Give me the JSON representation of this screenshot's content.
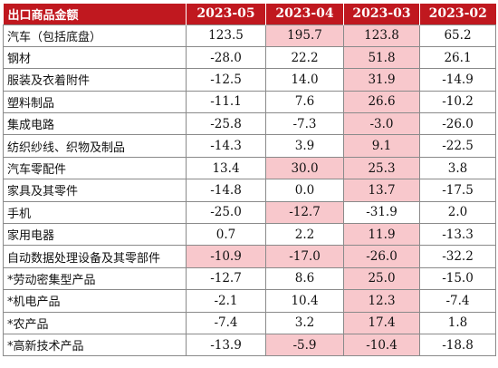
{
  "header": {
    "label": "出口商品金额",
    "periods": [
      "2023-05",
      "2023-04",
      "2023-03",
      "2023-02"
    ]
  },
  "highlight_color": "#f8c8cc",
  "header_color": "#c0181f",
  "rows": [
    {
      "name": "汽车（包括底盘）",
      "values": [
        "123.5",
        "195.7",
        "123.8",
        "65.2"
      ],
      "highlight": [
        false,
        true,
        true,
        false
      ]
    },
    {
      "name": "钢材",
      "values": [
        "-28.0",
        "22.2",
        "51.8",
        "26.1"
      ],
      "highlight": [
        false,
        false,
        true,
        false
      ]
    },
    {
      "name": "服装及衣着附件",
      "values": [
        "-12.5",
        "14.0",
        "31.9",
        "-14.9"
      ],
      "highlight": [
        false,
        false,
        true,
        false
      ]
    },
    {
      "name": "塑料制品",
      "values": [
        "-11.1",
        "7.6",
        "26.6",
        "-10.2"
      ],
      "highlight": [
        false,
        false,
        true,
        false
      ]
    },
    {
      "name": "集成电路",
      "values": [
        "-25.8",
        "-7.3",
        "-3.0",
        "-26.0"
      ],
      "highlight": [
        false,
        false,
        true,
        false
      ]
    },
    {
      "name": "纺织纱线、织物及制品",
      "values": [
        "-14.3",
        "3.9",
        "9.1",
        "-22.5"
      ],
      "highlight": [
        false,
        false,
        true,
        false
      ]
    },
    {
      "name": "汽车零配件",
      "values": [
        "13.4",
        "30.0",
        "25.3",
        "3.8"
      ],
      "highlight": [
        false,
        true,
        true,
        false
      ]
    },
    {
      "name": "家具及其零件",
      "values": [
        "-14.8",
        "0.0",
        "13.7",
        "-17.5"
      ],
      "highlight": [
        false,
        false,
        true,
        false
      ]
    },
    {
      "name": "手机",
      "values": [
        "-25.0",
        "-12.7",
        "-31.9",
        "2.0"
      ],
      "highlight": [
        false,
        true,
        false,
        false
      ]
    },
    {
      "name": "家用电器",
      "values": [
        "0.7",
        "2.2",
        "11.9",
        "-13.3"
      ],
      "highlight": [
        false,
        false,
        true,
        false
      ]
    },
    {
      "name": "自动数据处理设备及其零部件",
      "values": [
        "-10.9",
        "-17.0",
        "-26.0",
        "-32.2"
      ],
      "highlight": [
        true,
        true,
        true,
        false
      ]
    },
    {
      "name": "*劳动密集型产品",
      "values": [
        "-12.7",
        "8.6",
        "25.0",
        "-15.0"
      ],
      "highlight": [
        false,
        false,
        true,
        false
      ]
    },
    {
      "name": "*机电产品",
      "values": [
        "-2.1",
        "10.4",
        "12.3",
        "-7.4"
      ],
      "highlight": [
        false,
        false,
        true,
        false
      ]
    },
    {
      "name": "*农产品",
      "values": [
        "-7.4",
        "3.2",
        "17.4",
        "1.8"
      ],
      "highlight": [
        false,
        false,
        true,
        false
      ]
    },
    {
      "name": "*高新技术产品",
      "values": [
        "-13.9",
        "-5.9",
        "-10.4",
        "-18.8"
      ],
      "highlight": [
        false,
        true,
        true,
        false
      ]
    }
  ]
}
